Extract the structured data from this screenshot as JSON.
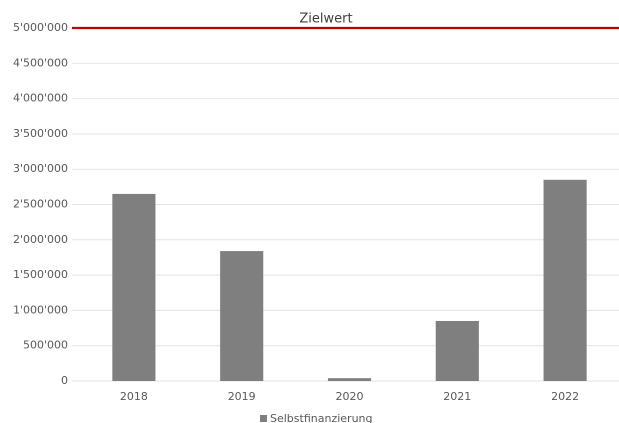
{
  "chart_data": {
    "type": "bar",
    "categories": [
      "2018",
      "2019",
      "2020",
      "2021",
      "2022"
    ],
    "series": [
      {
        "name": "Selbstfinanzierung",
        "color": "#7f7f7f",
        "values": [
          2650000,
          1840000,
          40000,
          850000,
          2850000
        ]
      }
    ],
    "ylim": [
      0,
      5000000
    ],
    "yticks": [
      0,
      {
        "value": 500000,
        "label": "500'000"
      },
      {
        "value": 1000000,
        "label": "1'000'000"
      },
      {
        "value": 1500000,
        "label": "1'500'000"
      },
      {
        "value": 2000000,
        "label": "2'000'000"
      },
      {
        "value": 2500000,
        "label": "2'500'000"
      },
      {
        "value": 3000000,
        "label": "3'000'000"
      },
      {
        "value": 3500000,
        "label": "3'500'000"
      },
      {
        "value": 4000000,
        "label": "4'000'000"
      },
      {
        "value": 4500000,
        "label": "4'500'000"
      },
      {
        "value": 5000000,
        "label": "5'000'000"
      }
    ],
    "grid": true,
    "target": {
      "value": 5000000,
      "label": "Zielwert",
      "color": "#c00000"
    },
    "legend": "bottom"
  }
}
